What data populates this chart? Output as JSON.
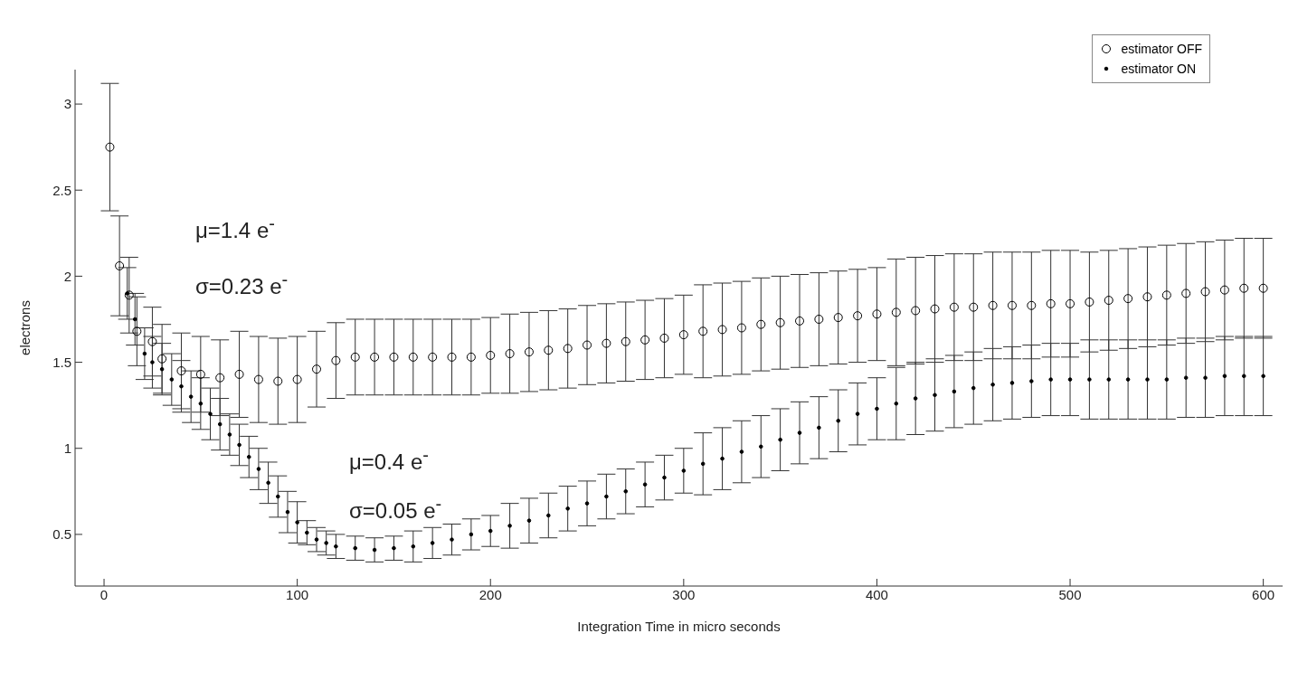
{
  "chart_data": {
    "type": "scatter",
    "xlabel": "Integration Time in micro seconds",
    "ylabel": "electrons",
    "xlim": [
      -15,
      610
    ],
    "xticks": [
      0,
      100,
      200,
      300,
      400,
      500,
      600
    ],
    "ylim": [
      0.2,
      3.2
    ],
    "yticks": [
      0.5,
      1,
      1.5,
      2,
      2.5,
      3
    ],
    "grid": false,
    "legend": "top right",
    "annotations": [
      "μ=1.4 e$^{-}$",
      "σ=0.23 e$^{-}$",
      "μ=0.4 e$^{-}$",
      "σ=0.05 e$^{-}$"
    ],
    "series": [
      {
        "name": "estimator OFF",
        "color": "#000000",
        "marker": "circle",
        "x": [
          3,
          8,
          13,
          17,
          25,
          30,
          40,
          50,
          60,
          70,
          80,
          90,
          100,
          110,
          120,
          130,
          140,
          150,
          160,
          170,
          180,
          190,
          200,
          210,
          220,
          230,
          240,
          250,
          260,
          270,
          280,
          290,
          300,
          310,
          320,
          330,
          340,
          350,
          360,
          370,
          380,
          390,
          400,
          410,
          420,
          430,
          440,
          450,
          460,
          470,
          480,
          490,
          500,
          510,
          520,
          530,
          540,
          550,
          560,
          570,
          580,
          590,
          600
        ],
        "values": [
          2.75,
          2.06,
          1.89,
          1.68,
          1.62,
          1.52,
          1.45,
          1.43,
          1.41,
          1.43,
          1.4,
          1.39,
          1.4,
          1.46,
          1.51,
          1.53,
          1.53,
          1.53,
          1.53,
          1.53,
          1.53,
          1.53,
          1.54,
          1.55,
          1.56,
          1.57,
          1.58,
          1.6,
          1.61,
          1.62,
          1.63,
          1.64,
          1.66,
          1.68,
          1.69,
          1.7,
          1.72,
          1.73,
          1.74,
          1.75,
          1.76,
          1.77,
          1.78,
          1.79,
          1.8,
          1.81,
          1.82,
          1.82,
          1.83,
          1.83,
          1.83,
          1.84,
          1.84,
          1.85,
          1.86,
          1.87,
          1.88,
          1.89,
          1.9,
          1.91,
          1.92,
          1.93,
          1.93
        ],
        "errors": [
          0.37,
          0.29,
          0.22,
          0.2,
          0.2,
          0.2,
          0.22,
          0.22,
          0.22,
          0.25,
          0.25,
          0.25,
          0.25,
          0.22,
          0.22,
          0.22,
          0.22,
          0.22,
          0.22,
          0.22,
          0.22,
          0.22,
          0.22,
          0.23,
          0.23,
          0.23,
          0.23,
          0.23,
          0.23,
          0.23,
          0.23,
          0.23,
          0.23,
          0.27,
          0.27,
          0.27,
          0.27,
          0.27,
          0.27,
          0.27,
          0.27,
          0.27,
          0.27,
          0.31,
          0.31,
          0.31,
          0.31,
          0.31,
          0.31,
          0.31,
          0.31,
          0.31,
          0.31,
          0.29,
          0.29,
          0.29,
          0.29,
          0.29,
          0.29,
          0.29,
          0.29,
          0.29,
          0.29
        ]
      },
      {
        "name": "estimator ON",
        "color": "#000000",
        "marker": "circle",
        "x": [
          12,
          16,
          21,
          25,
          30,
          35,
          40,
          45,
          50,
          55,
          60,
          65,
          70,
          75,
          80,
          85,
          90,
          95,
          100,
          105,
          110,
          115,
          120,
          130,
          140,
          150,
          160,
          170,
          180,
          190,
          200,
          210,
          220,
          230,
          240,
          250,
          260,
          270,
          280,
          290,
          300,
          310,
          320,
          330,
          340,
          350,
          360,
          370,
          380,
          390,
          400,
          410,
          420,
          430,
          440,
          450,
          460,
          470,
          480,
          490,
          500,
          510,
          520,
          530,
          540,
          550,
          560,
          570,
          580,
          590,
          600
        ],
        "values": [
          1.9,
          1.75,
          1.55,
          1.5,
          1.46,
          1.4,
          1.36,
          1.3,
          1.26,
          1.2,
          1.14,
          1.08,
          1.02,
          0.95,
          0.88,
          0.8,
          0.72,
          0.63,
          0.57,
          0.51,
          0.47,
          0.45,
          0.43,
          0.42,
          0.41,
          0.42,
          0.43,
          0.45,
          0.47,
          0.5,
          0.52,
          0.55,
          0.58,
          0.61,
          0.65,
          0.68,
          0.72,
          0.75,
          0.79,
          0.83,
          0.87,
          0.91,
          0.94,
          0.98,
          1.01,
          1.05,
          1.09,
          1.12,
          1.16,
          1.2,
          1.23,
          1.26,
          1.29,
          1.31,
          1.33,
          1.35,
          1.37,
          1.38,
          1.39,
          1.4,
          1.4,
          1.4,
          1.4,
          1.4,
          1.4,
          1.4,
          1.41,
          1.41,
          1.42,
          1.42,
          1.42
        ],
        "errors": [
          0.15,
          0.15,
          0.15,
          0.15,
          0.15,
          0.15,
          0.15,
          0.15,
          0.15,
          0.15,
          0.15,
          0.12,
          0.12,
          0.12,
          0.12,
          0.12,
          0.12,
          0.12,
          0.12,
          0.07,
          0.07,
          0.07,
          0.07,
          0.07,
          0.07,
          0.07,
          0.09,
          0.09,
          0.09,
          0.09,
          0.09,
          0.13,
          0.13,
          0.13,
          0.13,
          0.13,
          0.13,
          0.13,
          0.13,
          0.13,
          0.13,
          0.18,
          0.18,
          0.18,
          0.18,
          0.18,
          0.18,
          0.18,
          0.18,
          0.18,
          0.18,
          0.21,
          0.21,
          0.21,
          0.21,
          0.21,
          0.21,
          0.21,
          0.21,
          0.21,
          0.21,
          0.23,
          0.23,
          0.23,
          0.23,
          0.23,
          0.23,
          0.23,
          0.23,
          0.23,
          0.23
        ]
      }
    ]
  }
}
